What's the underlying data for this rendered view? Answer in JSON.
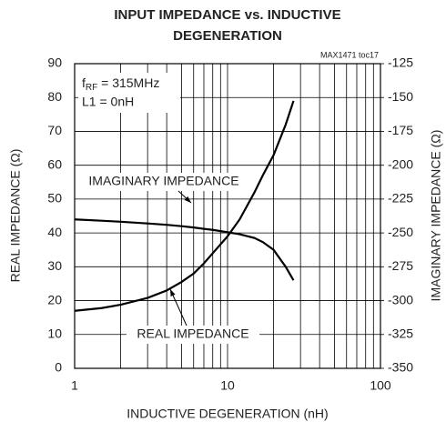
{
  "chart_data": {
    "type": "line",
    "title": [
      "INPUT IMPEDANCE vs. INDUCTIVE",
      "DEGENERATION"
    ],
    "code": "MAX1471 toc17",
    "x_label": "INDUCTIVE DEGENERATION (nH)",
    "y_label": "REAL IMPEDANCE (Ω)",
    "y2_label": "IMAGINARY IMPEDANCE (Ω)",
    "freq_label": {
      "base": "f",
      "sub": "RF",
      "rest": " = 315MHz"
    },
    "l1_label": "L1 = 0nH",
    "x_log": true,
    "x": [
      1,
      1.5,
      2,
      3,
      4,
      5,
      6,
      7,
      8,
      10,
      12,
      15,
      17,
      20,
      24,
      27
    ],
    "series": [
      {
        "name": "IMAGINARY IMPEDANCE",
        "color": "#000000",
        "axis": "y2",
        "values": [
          -240,
          -241,
          -241.75,
          -243,
          -244,
          -245,
          -246,
          -247,
          -247.75,
          -249.5,
          -251,
          -253.75,
          -256.75,
          -262.5,
          -275,
          -285
        ]
      },
      {
        "name": "REAL IMPEDANCE",
        "color": "#000000",
        "axis": "y",
        "values": [
          17,
          17.8,
          18.8,
          20.8,
          23,
          25.5,
          28,
          31,
          34,
          39,
          44,
          52,
          57,
          63,
          72,
          79
        ]
      }
    ],
    "xlim": [
      1,
      100
    ],
    "xticks": [
      1,
      10,
      100
    ],
    "x_minor_grid": [
      2,
      3,
      4,
      5,
      6,
      7,
      8,
      9,
      20,
      30,
      40,
      50,
      60,
      70,
      80,
      90
    ],
    "ylim": [
      0,
      90
    ],
    "yticks": [
      0,
      10,
      20,
      30,
      40,
      50,
      60,
      70,
      80,
      90
    ],
    "y2lim": [
      -350,
      -125
    ],
    "y2ticks": [
      -350,
      -325,
      -300,
      -275,
      -250,
      -225,
      -200,
      -175,
      -150,
      -125
    ],
    "grid": true
  }
}
